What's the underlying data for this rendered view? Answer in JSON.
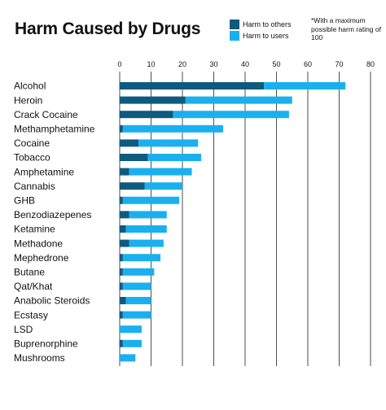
{
  "header": {
    "title": "Harm Caused by Drugs",
    "note": "*With a maximum possible harm rating of 100"
  },
  "colors": {
    "others": "#0f5a7e",
    "users": "#1ab0ef",
    "grid": "#222222"
  },
  "chart_data": {
    "type": "bar",
    "orientation": "horizontal",
    "stacked": true,
    "title": "Harm Caused by Drugs",
    "xlim": [
      0,
      80
    ],
    "xticks": [
      0,
      10,
      20,
      30,
      40,
      50,
      60,
      70,
      80
    ],
    "grid": true,
    "legend_position": "top-right",
    "categories": [
      "Alcohol",
      "Heroin",
      "Crack Cocaine",
      "Methamphetamine",
      "Cocaine",
      "Tobacco",
      "Amphetamine",
      "Cannabis",
      "GHB",
      "Benzodiazepenes",
      "Ketamine",
      "Methadone",
      "Mephedrone",
      "Butane",
      "Qat/Khat",
      "Anabolic Steroids",
      "Ecstasy",
      "LSD",
      "Buprenorphine",
      "Mushrooms"
    ],
    "series": [
      {
        "name": "Harm to others",
        "values": [
          46,
          21,
          17,
          1,
          6,
          9,
          3,
          8,
          1,
          3,
          2,
          3,
          1,
          1,
          1,
          2,
          1,
          0,
          1,
          0
        ]
      },
      {
        "name": "Harm to users",
        "values": [
          26,
          34,
          37,
          32,
          19,
          17,
          20,
          12,
          18,
          12,
          13,
          11,
          12,
          10,
          9,
          8,
          9,
          7,
          6,
          5
        ]
      }
    ]
  }
}
